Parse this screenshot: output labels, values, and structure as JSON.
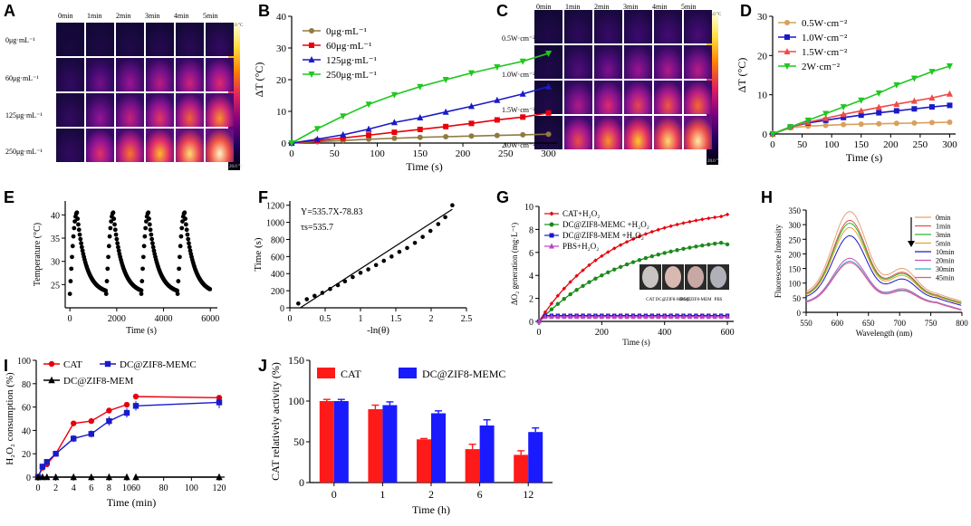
{
  "panel_labels": [
    "A",
    "B",
    "C",
    "D",
    "E",
    "F",
    "G",
    "H",
    "I",
    "J"
  ],
  "panel_A": {
    "time_labels": [
      "0min",
      "1min",
      "2min",
      "3min",
      "4min",
      "5min"
    ],
    "row_labels": [
      "0μg·mL⁻¹",
      "60μg·mL⁻¹",
      "125μg·mL⁻¹",
      "250μg·mL⁻¹"
    ],
    "colorbar": {
      "max": "45.0 °C",
      "min": "20.0 °C"
    }
  },
  "panel_C": {
    "time_labels": [
      "0min",
      "1min",
      "2min",
      "3min",
      "4min",
      "5min"
    ],
    "row_labels": [
      "0.5W·cm⁻²",
      "1.0W·cm⁻²",
      "1.5W·cm⁻²",
      "2.0W·cm⁻²"
    ],
    "colorbar": {
      "max": "45.0 °C",
      "min": "20.0 °C"
    }
  },
  "inset_G": {
    "labels": [
      "CAT",
      "DC@ZIF8-MEMC",
      "DC@ZIF8-MEM",
      "PBS"
    ]
  },
  "chart_data": [
    {
      "id": "B",
      "type": "line",
      "xlabel": "Time (s)",
      "ylabel": "ΔT (°C)",
      "xlim": [
        0,
        310
      ],
      "ylim": [
        0,
        40
      ],
      "xticks": [
        0,
        50,
        100,
        150,
        200,
        250,
        300
      ],
      "yticks": [
        0,
        10,
        20,
        30,
        40
      ],
      "x": [
        0,
        30,
        60,
        90,
        120,
        150,
        180,
        210,
        240,
        270,
        300
      ],
      "series": [
        {
          "name": "0μg·mL⁻¹",
          "color": "#8f7b3f",
          "marker": "circle",
          "values": [
            0,
            0.4,
            0.8,
            1.2,
            1.5,
            1.8,
            2.0,
            2.2,
            2.4,
            2.6,
            2.8
          ]
        },
        {
          "name": "60μg·mL⁻¹",
          "color": "#e8000b",
          "marker": "square",
          "values": [
            0,
            0.8,
            1.6,
            2.5,
            3.4,
            4.3,
            5.2,
            6.2,
            7.3,
            8.2,
            9.5
          ]
        },
        {
          "name": "125μg·mL⁻¹",
          "color": "#1a1ac8",
          "marker": "triangle",
          "values": [
            0,
            1.2,
            2.6,
            4.4,
            6.5,
            8.0,
            9.8,
            11.6,
            13.5,
            15.5,
            17.8
          ]
        },
        {
          "name": "250μg·mL⁻¹",
          "color": "#1ec81e",
          "marker": "triangle-down",
          "values": [
            0,
            4.5,
            8.5,
            12.2,
            15.2,
            17.8,
            20.0,
            22.1,
            24.0,
            25.8,
            28.3
          ]
        }
      ]
    },
    {
      "id": "D",
      "type": "line",
      "xlabel": "Time (s)",
      "ylabel": "ΔT (°C)",
      "xlim": [
        0,
        310
      ],
      "ylim": [
        0,
        30
      ],
      "xticks": [
        0,
        50,
        100,
        150,
        200,
        250,
        300
      ],
      "yticks": [
        0,
        10,
        20,
        30
      ],
      "x": [
        0,
        30,
        60,
        90,
        120,
        150,
        180,
        210,
        240,
        270,
        300
      ],
      "series": [
        {
          "name": "0.5W·cm⁻²",
          "color": "#d9a05a",
          "marker": "circle",
          "values": [
            0,
            1.6,
            2.0,
            2.2,
            2.4,
            2.5,
            2.6,
            2.7,
            2.8,
            2.9,
            3.0
          ]
        },
        {
          "name": "1.0W·cm⁻²",
          "color": "#1a1ac8",
          "marker": "square",
          "values": [
            0,
            1.8,
            2.8,
            3.5,
            4.2,
            4.8,
            5.4,
            5.9,
            6.4,
            6.9,
            7.3
          ]
        },
        {
          "name": "1.5W·cm⁻²",
          "color": "#f04a4a",
          "marker": "triangle",
          "values": [
            0,
            1.8,
            3.0,
            4.0,
            5.0,
            5.9,
            6.8,
            7.6,
            8.4,
            9.2,
            10.2
          ]
        },
        {
          "name": "2W·cm⁻²",
          "color": "#1ec81e",
          "marker": "triangle-down",
          "values": [
            0,
            1.8,
            3.5,
            5.2,
            6.9,
            8.6,
            10.4,
            12.5,
            14.2,
            15.9,
            17.3
          ]
        }
      ]
    },
    {
      "id": "E",
      "type": "scatter",
      "xlabel": "Time (s)",
      "ylabel": "Temperature (°C)",
      "xlim": [
        -200,
        6300
      ],
      "ylim": [
        20,
        43
      ],
      "xticks": [
        0,
        2000,
        4000,
        6000
      ],
      "yticks": [
        25,
        30,
        35,
        40
      ],
      "cycles": [
        {
          "start": 0,
          "peak": 300
        },
        {
          "start": 1550,
          "peak": 1850
        },
        {
          "start": 3050,
          "peak": 3350
        },
        {
          "start": 4600,
          "peak": 4900
        }
      ],
      "cycle_end": 6000,
      "min_temp": 23,
      "peak_temp": 40.5
    },
    {
      "id": "F",
      "type": "scatter",
      "xlabel": "-ln(θ)",
      "ylabel": "Time (s)",
      "xlim": [
        0,
        2.5
      ],
      "ylim": [
        0,
        1250
      ],
      "xticks": [
        0.0,
        0.5,
        1.0,
        1.5,
        2.0,
        2.5
      ],
      "yticks": [
        0,
        200,
        400,
        600,
        800,
        1000,
        1200
      ],
      "annotations": [
        "Y=535.7X-78.83",
        "τs=535.7"
      ],
      "x": [
        0.12,
        0.24,
        0.35,
        0.46,
        0.57,
        0.68,
        0.78,
        0.89,
        1.0,
        1.11,
        1.22,
        1.33,
        1.44,
        1.55,
        1.66,
        1.77,
        1.88,
        1.99,
        2.1,
        2.2,
        2.3
      ],
      "values": [
        50,
        100,
        140,
        175,
        220,
        265,
        310,
        360,
        410,
        450,
        500,
        550,
        600,
        655,
        700,
        760,
        830,
        900,
        980,
        1060,
        1200
      ],
      "fit": {
        "slope": 535.7,
        "intercept": -78.83,
        "x_range": [
          0.15,
          2.3
        ]
      }
    },
    {
      "id": "G",
      "type": "line",
      "xlabel": "Time (s)",
      "ylabel": "ΔO₂ generation (mg·L⁻¹)",
      "xlim": [
        0,
        620
      ],
      "ylim": [
        0,
        10
      ],
      "xticks": [
        0,
        200,
        400,
        600
      ],
      "yticks": [
        0,
        2,
        4,
        6,
        8,
        10
      ],
      "series": [
        {
          "name": "CAT+H₂O₂",
          "color": "#e8000b",
          "marker": "diamond",
          "k": 0.0042,
          "max": 10.0,
          "end": 9.3
        },
        {
          "name": "DC@ZIF8-MEMC +H₂O₂",
          "color": "#1a8a1a",
          "marker": "circle",
          "k": 0.0036,
          "max": 7.8,
          "end": 6.7
        },
        {
          "name": "DC@ZIF8-MEM +H₂O₂",
          "color": "#1a1ac8",
          "marker": "square",
          "flat": 0.5
        },
        {
          "name": "PBS+H₂O₂",
          "color": "#c040c0",
          "marker": "triangle",
          "flat": 0.4
        }
      ]
    },
    {
      "id": "H",
      "type": "line",
      "xlabel": "Wavelength (nm)",
      "ylabel": "Fluorescence Intensity",
      "xlim": [
        550,
        800
      ],
      "ylim": [
        0,
        350
      ],
      "xticks": [
        550,
        600,
        650,
        700,
        750,
        800
      ],
      "yticks": [
        0,
        50,
        100,
        150,
        200,
        250,
        300,
        350
      ],
      "series": [
        {
          "name": "0min",
          "color": "#e8a070",
          "peak": 345
        },
        {
          "name": "1min",
          "color": "#e05050",
          "peak": 315
        },
        {
          "name": "3min",
          "color": "#2ab82a",
          "peak": 305
        },
        {
          "name": "5min",
          "color": "#e8a030",
          "peak": 290
        },
        {
          "name": "10min",
          "color": "#1a1ac8",
          "peak": 262
        },
        {
          "name": "20min",
          "color": "#c050c0",
          "peak": 185
        },
        {
          "name": "30min",
          "color": "#30b0c0",
          "peak": 175
        },
        {
          "name": "45min",
          "color": "#f05090",
          "peak": 170
        }
      ]
    },
    {
      "id": "I",
      "type": "line",
      "xlabel": "Time (min)",
      "ylabel": "H₂O₂ consumption (%)",
      "ylim": [
        0,
        100
      ],
      "xticks": [
        0,
        2,
        4,
        6,
        8,
        10,
        60,
        80,
        100,
        120
      ],
      "yticks": [
        0,
        20,
        40,
        60,
        80,
        100
      ],
      "x": [
        0,
        0.5,
        1,
        2,
        4,
        6,
        8,
        10,
        60,
        120
      ],
      "series": [
        {
          "name": "CAT",
          "color": "#e8000b",
          "marker": "circle",
          "values": [
            0,
            8,
            11,
            20,
            46,
            48,
            57,
            62,
            69,
            68
          ]
        },
        {
          "name": "DC@ZIF8-MEMC",
          "color": "#1a1ac8",
          "marker": "square",
          "values": [
            0,
            9,
            13,
            20,
            33,
            37,
            48,
            55,
            61,
            64
          ],
          "err": [
            0,
            1,
            1,
            2,
            3,
            3,
            4,
            4,
            4,
            5
          ]
        },
        {
          "name": "DC@ZIF8-MEM",
          "color": "#000000",
          "marker": "triangle",
          "values": [
            0,
            0,
            0,
            0,
            0,
            0,
            0,
            0,
            0,
            0
          ]
        }
      ]
    },
    {
      "id": "J",
      "type": "bar",
      "xlabel": "Time (h)",
      "ylabel": "CAT relatively activity (%)",
      "ylim": [
        0,
        150
      ],
      "categories": [
        "0",
        "1",
        "2",
        "6",
        "12"
      ],
      "yticks": [
        0,
        50,
        100,
        150
      ],
      "series": [
        {
          "name": "CAT",
          "color": "#ff1a1a",
          "values": [
            100,
            90,
            53,
            41,
            34
          ],
          "err": [
            2,
            5,
            1,
            6,
            5
          ]
        },
        {
          "name": "DC@ZIF8-MEMC",
          "color": "#1a1aff",
          "values": [
            100,
            95,
            85,
            70,
            62
          ],
          "err": [
            2,
            4,
            3,
            7,
            5
          ]
        }
      ]
    }
  ]
}
